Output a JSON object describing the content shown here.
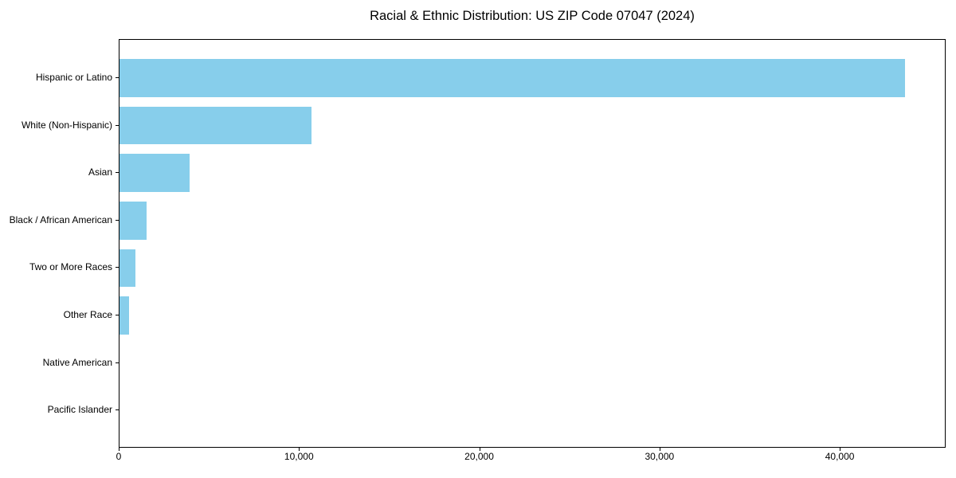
{
  "title": "Racial & Ethnic Distribution: US ZIP Code 07047 (2024)",
  "colors": {
    "bar": "#87CEEB",
    "axis": "#000000",
    "text": "#000000",
    "background": "#FFFFFF"
  },
  "chart_data": {
    "type": "bar",
    "orientation": "horizontal",
    "title": "Racial & Ethnic Distribution: US ZIP Code 07047 (2024)",
    "categories": [
      "Hispanic or Latino",
      "White (Non-Hispanic)",
      "Asian",
      "Black / African American",
      "Two or More Races",
      "Other Race",
      "Native American",
      "Pacific Islander"
    ],
    "values": [
      43600,
      10660,
      3900,
      1500,
      885,
      530,
      0,
      0
    ],
    "xlabel": "",
    "ylabel": "",
    "xlim": [
      0,
      45830
    ],
    "xticks": [
      0,
      10000,
      20000,
      30000,
      40000
    ],
    "xtick_labels": [
      "0",
      "10,000",
      "20,000",
      "30,000",
      "40,000"
    ],
    "bar_color": "#87CEEB",
    "grid": false,
    "legend": null
  }
}
